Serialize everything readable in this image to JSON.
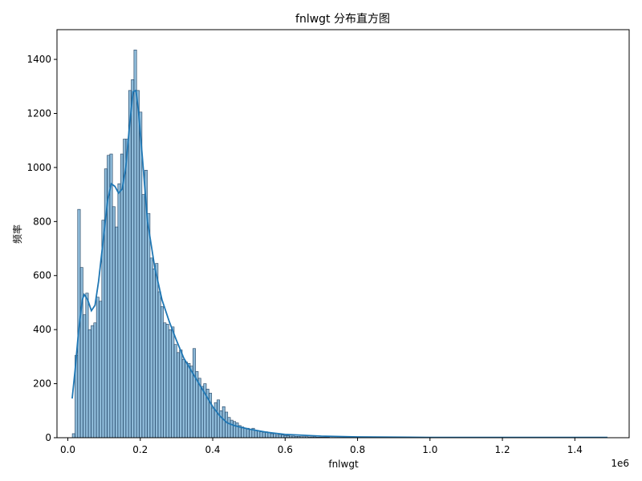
{
  "chart_data": {
    "type": "bar",
    "title": "fnlwgt 分布直方图",
    "xlabel": "fnlwgt",
    "ylabel": "频率",
    "x_offset_label": "1e6",
    "xlim": [
      -0.03,
      1.55
    ],
    "ylim": [
      0,
      1510
    ],
    "x_ticks": [
      0.0,
      0.2,
      0.4,
      0.6,
      0.8,
      1.0,
      1.2,
      1.4
    ],
    "x_tick_labels": [
      "0.0",
      "0.2",
      "0.4",
      "0.6",
      "0.8",
      "1.0",
      "1.2",
      "1.4"
    ],
    "y_ticks": [
      0,
      200,
      400,
      600,
      800,
      1000,
      1200,
      1400
    ],
    "y_tick_labels": [
      "0",
      "200",
      "400",
      "600",
      "800",
      "1000",
      "1200",
      "1400"
    ],
    "grid": false,
    "legend": "none",
    "bin_width": 0.0074,
    "bin_start": 0.0123,
    "bar_color": "#1f77b4",
    "bar_opacity": 0.5,
    "bar_edge_color": "#1f3f5f",
    "kde_color": "#1f77b4",
    "values": [
      15,
      305,
      845,
      630,
      455,
      535,
      400,
      415,
      425,
      520,
      505,
      805,
      995,
      1045,
      1050,
      855,
      780,
      940,
      1050,
      1105,
      1105,
      1285,
      1325,
      1435,
      1285,
      1205,
      900,
      990,
      830,
      665,
      625,
      645,
      540,
      485,
      425,
      420,
      400,
      410,
      345,
      315,
      325,
      290,
      280,
      275,
      265,
      330,
      245,
      220,
      190,
      200,
      180,
      165,
      110,
      130,
      140,
      100,
      115,
      95,
      75,
      65,
      60,
      55,
      45,
      40,
      35,
      35,
      30,
      35,
      28,
      25,
      22,
      20,
      22,
      20,
      15,
      15,
      10,
      12,
      10,
      8,
      8,
      6,
      6,
      5,
      5,
      4,
      4,
      4,
      3,
      3,
      3,
      2,
      2,
      2,
      2,
      2,
      1,
      1,
      1,
      1,
      1,
      1,
      1,
      1,
      1,
      1,
      1,
      1,
      1,
      1,
      1,
      1,
      1,
      1,
      1,
      1,
      1,
      1,
      1,
      1,
      1,
      1,
      1,
      1,
      1,
      1,
      1,
      1,
      1,
      1,
      1,
      1,
      1,
      1,
      1,
      1,
      1,
      1,
      1,
      1,
      1,
      1,
      1,
      1,
      1,
      1,
      1,
      1,
      1,
      1,
      1,
      1,
      1,
      1,
      1,
      1,
      1,
      1,
      1,
      1,
      1,
      1,
      1,
      1,
      1,
      1,
      1,
      1,
      1,
      1,
      1,
      1,
      1,
      1,
      1,
      1,
      1,
      1,
      1,
      1
    ],
    "kde": [
      [
        0.012,
        145
      ],
      [
        0.02,
        250
      ],
      [
        0.03,
        400
      ],
      [
        0.04,
        510
      ],
      [
        0.045,
        530
      ],
      [
        0.055,
        510
      ],
      [
        0.065,
        470
      ],
      [
        0.075,
        490
      ],
      [
        0.085,
        580
      ],
      [
        0.1,
        760
      ],
      [
        0.11,
        880
      ],
      [
        0.12,
        940
      ],
      [
        0.13,
        930
      ],
      [
        0.14,
        905
      ],
      [
        0.15,
        920
      ],
      [
        0.16,
        1000
      ],
      [
        0.17,
        1150
      ],
      [
        0.18,
        1280
      ],
      [
        0.188,
        1285
      ],
      [
        0.195,
        1210
      ],
      [
        0.205,
        1050
      ],
      [
        0.22,
        800
      ],
      [
        0.24,
        630
      ],
      [
        0.26,
        510
      ],
      [
        0.28,
        430
      ],
      [
        0.3,
        360
      ],
      [
        0.32,
        295
      ],
      [
        0.34,
        250
      ],
      [
        0.36,
        205
      ],
      [
        0.38,
        160
      ],
      [
        0.4,
        115
      ],
      [
        0.42,
        80
      ],
      [
        0.44,
        55
      ],
      [
        0.46,
        45
      ],
      [
        0.48,
        38
      ],
      [
        0.5,
        32
      ],
      [
        0.55,
        20
      ],
      [
        0.6,
        12
      ],
      [
        0.7,
        6
      ],
      [
        0.8,
        3
      ],
      [
        1.0,
        1
      ],
      [
        1.2,
        1
      ],
      [
        1.4,
        1
      ],
      [
        1.49,
        1
      ]
    ]
  }
}
